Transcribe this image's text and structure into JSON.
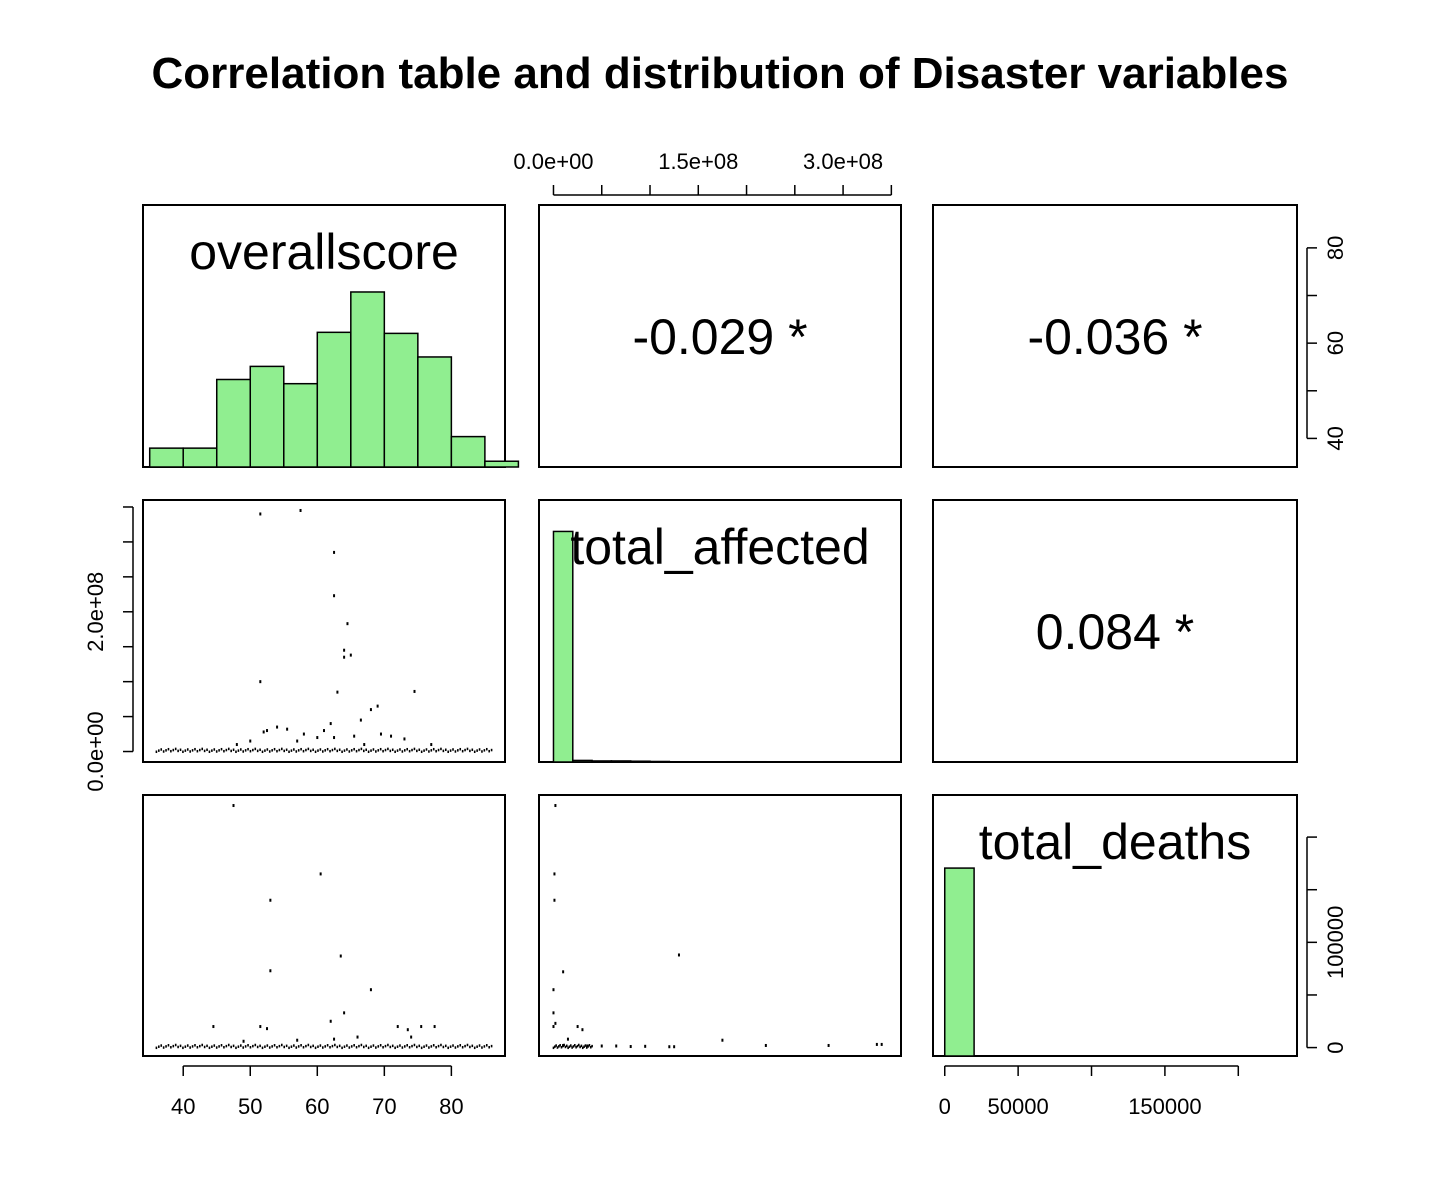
{
  "title": "Correlation table and distribution of Disaster variables",
  "chart_data": {
    "type": "pairs",
    "variables": [
      "overallscore",
      "total_affected",
      "total_deaths"
    ],
    "colors": {
      "hist_fill": "#90EE90",
      "stroke": "#000000"
    },
    "axes": {
      "overallscore": {
        "range": [
          34,
          88
        ],
        "ticks": [
          40,
          50,
          60,
          70,
          80
        ],
        "tick_labels": [
          "40",
          "50",
          "60",
          "70",
          "80"
        ]
      },
      "total_affected": {
        "range": [
          -15000000.0,
          360000000.0
        ],
        "ticks": [
          0,
          150000000.0,
          300000000.0
        ],
        "minor_ticks": [
          50000000.0,
          100000000.0,
          200000000.0,
          250000000.0,
          350000000.0
        ],
        "tick_labels": [
          "0.0e+00",
          "1.5e+08",
          "3.0e+08"
        ],
        "left_ticks": [
          0,
          200000000.0
        ],
        "left_minor_ticks": [
          50000000.0,
          100000000.0,
          150000000.0,
          250000000.0,
          300000000.0,
          350000000.0
        ],
        "left_tick_labels": [
          "0.0e+00",
          "2.0e+08"
        ]
      },
      "total_deaths": {
        "range": [
          -8000,
          240000
        ],
        "ticks": [
          0,
          50000,
          150000
        ],
        "minor_ticks": [
          100000,
          200000
        ],
        "tick_labels": [
          "0",
          "50000",
          "150000"
        ],
        "right_ticks": [
          0,
          100000
        ],
        "right_minor_ticks": [
          50000,
          150000,
          200000
        ],
        "right_tick_labels": [
          "0",
          "100000"
        ]
      },
      "overallscore_right": {
        "ticks": [
          40,
          60,
          80
        ],
        "minor_ticks": [
          50,
          70
        ],
        "tick_labels": [
          "40",
          "60",
          "80"
        ]
      }
    },
    "correlations": [
      {
        "row": 0,
        "col": 1,
        "label": "-0.029 *"
      },
      {
        "row": 0,
        "col": 2,
        "label": "-0.036 *"
      },
      {
        "row": 1,
        "col": 2,
        "label": "0.084 *"
      }
    ],
    "histograms": {
      "overallscore": {
        "bins": [
          35,
          40,
          45,
          50,
          55,
          60,
          65,
          70,
          75,
          80,
          85,
          90
        ],
        "counts": [
          0.072,
          0.072,
          0.334,
          0.384,
          0.318,
          0.514,
          0.668,
          0.51,
          0.42,
          0.116,
          0.022
        ],
        "scale": "relative"
      },
      "total_affected": {
        "bins": [
          0,
          20000000.0,
          40000000.0,
          60000000.0,
          80000000.0,
          100000000.0,
          120000000.0,
          140000000.0,
          160000000.0,
          180000000.0,
          200000000.0,
          220000000.0,
          240000000.0,
          260000000.0,
          280000000.0,
          300000000.0,
          320000000.0,
          340000000.0,
          360000000.0
        ],
        "counts": [
          0.88,
          0.006,
          0.004,
          0.004,
          0.003,
          0.002,
          0.001,
          0,
          0,
          0.001,
          0.001,
          0,
          0,
          0,
          0.001,
          0,
          0,
          0.001
        ],
        "scale": "relative"
      },
      "total_deaths": {
        "bins": [
          0,
          20000,
          40000,
          60000,
          80000,
          100000,
          120000,
          140000,
          160000,
          180000,
          200000,
          220000,
          240000
        ],
        "counts": [
          0.72,
          0,
          0,
          0,
          0,
          0,
          0,
          0,
          0,
          0,
          0,
          0
        ],
        "scale": "relative"
      }
    },
    "scatter": {
      "affected_vs_score": [
        [
          51.5,
          340000000.0
        ],
        [
          57.5,
          345000000.0
        ],
        [
          62.5,
          285000000.0
        ],
        [
          62.5,
          223000000.0
        ],
        [
          64.5,
          183000000.0
        ],
        [
          64,
          145000000.0
        ],
        [
          65,
          138000000.0
        ],
        [
          64,
          135000000.0
        ],
        [
          51.5,
          100000000.0
        ],
        [
          63,
          85000000.0
        ],
        [
          66.5,
          45000000.0
        ],
        [
          68,
          60000000.0
        ],
        [
          69,
          65000000.0
        ],
        [
          74.5,
          86000000.0
        ],
        [
          52.5,
          30000000.0
        ],
        [
          52,
          28000000.0
        ],
        [
          54,
          35000000.0
        ],
        [
          55.5,
          32000000.0
        ],
        [
          58,
          25000000.0
        ],
        [
          61,
          30000000.0
        ],
        [
          62,
          40000000.0
        ],
        [
          62.5,
          20000000.0
        ],
        [
          60,
          20000000.0
        ],
        [
          65.5,
          22000000.0
        ],
        [
          69.5,
          25000000.0
        ],
        [
          71,
          22000000.0
        ],
        [
          73,
          18000000.0
        ],
        [
          57,
          15000000.0
        ],
        [
          50,
          15000000.0
        ],
        [
          48,
          10000000.0
        ],
        [
          67,
          10000000.0
        ],
        [
          77,
          10000000.0
        ]
      ],
      "deaths_vs_score": [
        [
          47.5,
          230000
        ],
        [
          60.5,
          165000
        ],
        [
          53,
          140000
        ],
        [
          63.5,
          87000
        ],
        [
          53,
          73000
        ],
        [
          68,
          55000
        ],
        [
          64,
          33000
        ],
        [
          62,
          25000
        ],
        [
          44.5,
          20000
        ],
        [
          51.5,
          20000
        ],
        [
          52.5,
          18000
        ],
        [
          72,
          20000
        ],
        [
          73.5,
          17000
        ],
        [
          75.5,
          20000
        ],
        [
          77.5,
          20000
        ],
        [
          74,
          10000
        ],
        [
          62.5,
          8000
        ],
        [
          66,
          10000
        ],
        [
          57,
          7000
        ],
        [
          49,
          6000
        ]
      ],
      "deaths_vs_affected": [
        [
          2000000.0,
          230000
        ],
        [
          1000000.0,
          165000
        ],
        [
          1000000.0,
          140000
        ],
        [
          10000000.0,
          72000
        ],
        [
          130000000.0,
          88000
        ],
        [
          0,
          55000
        ],
        [
          0,
          33000
        ],
        [
          2000000.0,
          23000
        ],
        [
          0,
          20000
        ],
        [
          25000000.0,
          20000
        ],
        [
          30000000.0,
          17000
        ],
        [
          175000000.0,
          7000
        ],
        [
          220000000.0,
          2000
        ],
        [
          285000000.0,
          2000
        ],
        [
          335000000.0,
          3000
        ],
        [
          340000000.0,
          3000
        ],
        [
          50000000.0,
          1500
        ],
        [
          65000000.0,
          1500
        ],
        [
          80000000.0,
          1000
        ],
        [
          95000000.0,
          1200
        ],
        [
          120000000.0,
          800
        ],
        [
          125000000.0,
          800
        ],
        [
          10000000.0,
          2000
        ],
        [
          35000000.0,
          1500
        ],
        [
          15000000.0,
          8000
        ]
      ]
    }
  }
}
